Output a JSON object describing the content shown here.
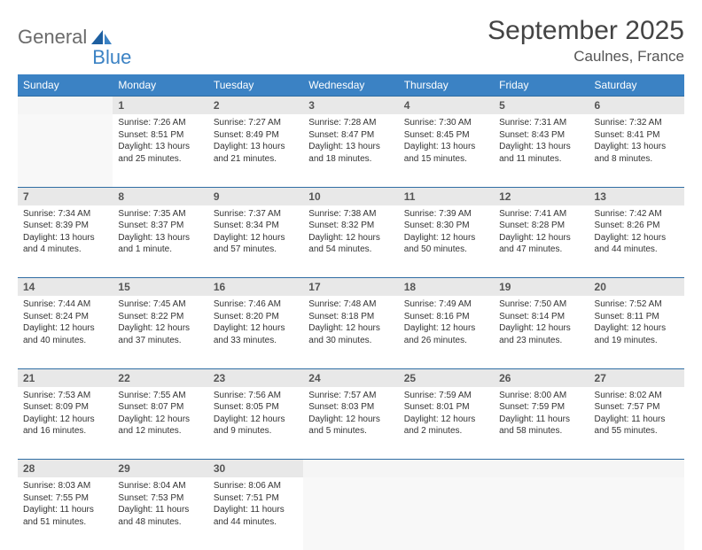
{
  "logo": {
    "word1": "General",
    "word2": "Blue"
  },
  "title": "September 2025",
  "location": "Caulnes, France",
  "colors": {
    "header_bg": "#3b82c4",
    "header_text": "#ffffff",
    "daynum_bg": "#e8e8e8",
    "rule": "#2f6da3",
    "logo_gray": "#6b6b6b",
    "logo_blue": "#3b82c4"
  },
  "weekdays": [
    "Sunday",
    "Monday",
    "Tuesday",
    "Wednesday",
    "Thursday",
    "Friday",
    "Saturday"
  ],
  "weeks": [
    {
      "nums": [
        "",
        "1",
        "2",
        "3",
        "4",
        "5",
        "6"
      ],
      "cells": [
        null,
        {
          "sunrise": "Sunrise: 7:26 AM",
          "sunset": "Sunset: 8:51 PM",
          "daylight": "Daylight: 13 hours and 25 minutes."
        },
        {
          "sunrise": "Sunrise: 7:27 AM",
          "sunset": "Sunset: 8:49 PM",
          "daylight": "Daylight: 13 hours and 21 minutes."
        },
        {
          "sunrise": "Sunrise: 7:28 AM",
          "sunset": "Sunset: 8:47 PM",
          "daylight": "Daylight: 13 hours and 18 minutes."
        },
        {
          "sunrise": "Sunrise: 7:30 AM",
          "sunset": "Sunset: 8:45 PM",
          "daylight": "Daylight: 13 hours and 15 minutes."
        },
        {
          "sunrise": "Sunrise: 7:31 AM",
          "sunset": "Sunset: 8:43 PM",
          "daylight": "Daylight: 13 hours and 11 minutes."
        },
        {
          "sunrise": "Sunrise: 7:32 AM",
          "sunset": "Sunset: 8:41 PM",
          "daylight": "Daylight: 13 hours and 8 minutes."
        }
      ]
    },
    {
      "nums": [
        "7",
        "8",
        "9",
        "10",
        "11",
        "12",
        "13"
      ],
      "cells": [
        {
          "sunrise": "Sunrise: 7:34 AM",
          "sunset": "Sunset: 8:39 PM",
          "daylight": "Daylight: 13 hours and 4 minutes."
        },
        {
          "sunrise": "Sunrise: 7:35 AM",
          "sunset": "Sunset: 8:37 PM",
          "daylight": "Daylight: 13 hours and 1 minute."
        },
        {
          "sunrise": "Sunrise: 7:37 AM",
          "sunset": "Sunset: 8:34 PM",
          "daylight": "Daylight: 12 hours and 57 minutes."
        },
        {
          "sunrise": "Sunrise: 7:38 AM",
          "sunset": "Sunset: 8:32 PM",
          "daylight": "Daylight: 12 hours and 54 minutes."
        },
        {
          "sunrise": "Sunrise: 7:39 AM",
          "sunset": "Sunset: 8:30 PM",
          "daylight": "Daylight: 12 hours and 50 minutes."
        },
        {
          "sunrise": "Sunrise: 7:41 AM",
          "sunset": "Sunset: 8:28 PM",
          "daylight": "Daylight: 12 hours and 47 minutes."
        },
        {
          "sunrise": "Sunrise: 7:42 AM",
          "sunset": "Sunset: 8:26 PM",
          "daylight": "Daylight: 12 hours and 44 minutes."
        }
      ]
    },
    {
      "nums": [
        "14",
        "15",
        "16",
        "17",
        "18",
        "19",
        "20"
      ],
      "cells": [
        {
          "sunrise": "Sunrise: 7:44 AM",
          "sunset": "Sunset: 8:24 PM",
          "daylight": "Daylight: 12 hours and 40 minutes."
        },
        {
          "sunrise": "Sunrise: 7:45 AM",
          "sunset": "Sunset: 8:22 PM",
          "daylight": "Daylight: 12 hours and 37 minutes."
        },
        {
          "sunrise": "Sunrise: 7:46 AM",
          "sunset": "Sunset: 8:20 PM",
          "daylight": "Daylight: 12 hours and 33 minutes."
        },
        {
          "sunrise": "Sunrise: 7:48 AM",
          "sunset": "Sunset: 8:18 PM",
          "daylight": "Daylight: 12 hours and 30 minutes."
        },
        {
          "sunrise": "Sunrise: 7:49 AM",
          "sunset": "Sunset: 8:16 PM",
          "daylight": "Daylight: 12 hours and 26 minutes."
        },
        {
          "sunrise": "Sunrise: 7:50 AM",
          "sunset": "Sunset: 8:14 PM",
          "daylight": "Daylight: 12 hours and 23 minutes."
        },
        {
          "sunrise": "Sunrise: 7:52 AM",
          "sunset": "Sunset: 8:11 PM",
          "daylight": "Daylight: 12 hours and 19 minutes."
        }
      ]
    },
    {
      "nums": [
        "21",
        "22",
        "23",
        "24",
        "25",
        "26",
        "27"
      ],
      "cells": [
        {
          "sunrise": "Sunrise: 7:53 AM",
          "sunset": "Sunset: 8:09 PM",
          "daylight": "Daylight: 12 hours and 16 minutes."
        },
        {
          "sunrise": "Sunrise: 7:55 AM",
          "sunset": "Sunset: 8:07 PM",
          "daylight": "Daylight: 12 hours and 12 minutes."
        },
        {
          "sunrise": "Sunrise: 7:56 AM",
          "sunset": "Sunset: 8:05 PM",
          "daylight": "Daylight: 12 hours and 9 minutes."
        },
        {
          "sunrise": "Sunrise: 7:57 AM",
          "sunset": "Sunset: 8:03 PM",
          "daylight": "Daylight: 12 hours and 5 minutes."
        },
        {
          "sunrise": "Sunrise: 7:59 AM",
          "sunset": "Sunset: 8:01 PM",
          "daylight": "Daylight: 12 hours and 2 minutes."
        },
        {
          "sunrise": "Sunrise: 8:00 AM",
          "sunset": "Sunset: 7:59 PM",
          "daylight": "Daylight: 11 hours and 58 minutes."
        },
        {
          "sunrise": "Sunrise: 8:02 AM",
          "sunset": "Sunset: 7:57 PM",
          "daylight": "Daylight: 11 hours and 55 minutes."
        }
      ]
    },
    {
      "nums": [
        "28",
        "29",
        "30",
        "",
        "",
        "",
        ""
      ],
      "cells": [
        {
          "sunrise": "Sunrise: 8:03 AM",
          "sunset": "Sunset: 7:55 PM",
          "daylight": "Daylight: 11 hours and 51 minutes."
        },
        {
          "sunrise": "Sunrise: 8:04 AM",
          "sunset": "Sunset: 7:53 PM",
          "daylight": "Daylight: 11 hours and 48 minutes."
        },
        {
          "sunrise": "Sunrise: 8:06 AM",
          "sunset": "Sunset: 7:51 PM",
          "daylight": "Daylight: 11 hours and 44 minutes."
        },
        null,
        null,
        null,
        null
      ]
    }
  ]
}
